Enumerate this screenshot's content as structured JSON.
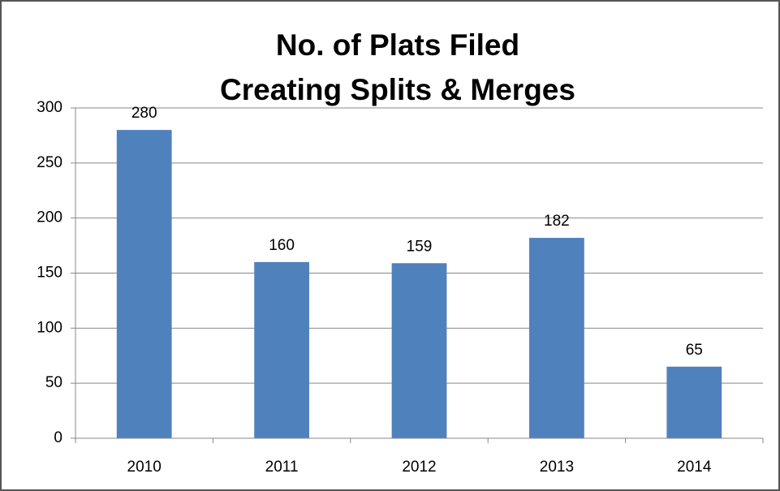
{
  "chart_data": {
    "type": "bar",
    "title": [
      "No. of Plats Filed",
      "Creating Splits & Merges"
    ],
    "categories": [
      "2010",
      "2011",
      "2012",
      "2013",
      "2014"
    ],
    "values": [
      280,
      160,
      159,
      182,
      65
    ],
    "color": "#4f81bd",
    "ylim": [
      0,
      300
    ],
    "yticks": [
      0,
      50,
      100,
      150,
      200,
      250,
      300
    ],
    "grid": true
  }
}
